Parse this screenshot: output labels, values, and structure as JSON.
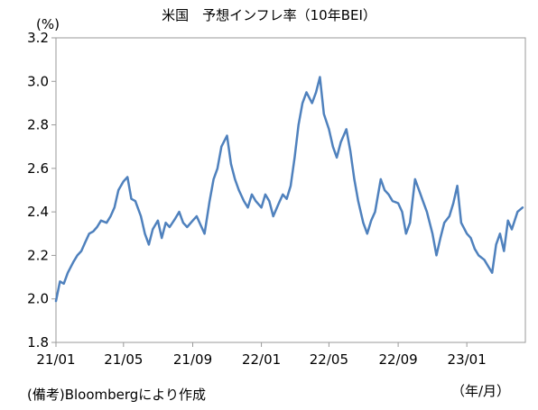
{
  "chart_data": {
    "type": "line",
    "title": "米国　予想インフレ率（10年BEI）",
    "ylabel": "(%)",
    "xlabel": "（年/月）",
    "source": "(備考)Bloombergにより作成",
    "ylim": [
      1.8,
      3.2
    ],
    "yticks": [
      "1.8",
      "2.0",
      "2.2",
      "2.4",
      "2.6",
      "2.8",
      "3.0",
      "3.2"
    ],
    "xlim": [
      "2021-01-01",
      "2023-04-15"
    ],
    "xticks": [
      {
        "label": "21/01",
        "date": "2021-01-01"
      },
      {
        "label": "21/05",
        "date": "2021-05-01"
      },
      {
        "label": "21/09",
        "date": "2021-09-01"
      },
      {
        "label": "22/01",
        "date": "2022-01-01"
      },
      {
        "label": "22/05",
        "date": "2022-05-01"
      },
      {
        "label": "22/09",
        "date": "2022-09-01"
      },
      {
        "label": "23/01",
        "date": "2023-01-01"
      }
    ],
    "grid": false,
    "line_color": "#4f81bd",
    "series": [
      {
        "x": [
          "2021-01-01",
          "2021-01-08",
          "2021-01-15",
          "2021-01-22",
          "2021-02-01",
          "2021-02-08",
          "2021-02-15",
          "2021-02-22",
          "2021-03-01",
          "2021-03-08",
          "2021-03-15",
          "2021-03-22",
          "2021-04-01",
          "2021-04-08",
          "2021-04-15",
          "2021-04-22",
          "2021-05-01",
          "2021-05-08",
          "2021-05-15",
          "2021-05-22",
          "2021-06-01",
          "2021-06-08",
          "2021-06-15",
          "2021-06-22",
          "2021-07-01",
          "2021-07-08",
          "2021-07-15",
          "2021-07-22",
          "2021-08-01",
          "2021-08-08",
          "2021-08-15",
          "2021-08-22",
          "2021-09-01",
          "2021-09-08",
          "2021-09-15",
          "2021-09-22",
          "2021-10-01",
          "2021-10-08",
          "2021-10-15",
          "2021-10-22",
          "2021-11-01",
          "2021-11-08",
          "2021-11-15",
          "2021-11-22",
          "2021-12-01",
          "2021-12-08",
          "2021-12-15",
          "2021-12-22",
          "2022-01-01",
          "2022-01-08",
          "2022-01-15",
          "2022-01-22",
          "2022-02-01",
          "2022-02-08",
          "2022-02-15",
          "2022-02-22",
          "2022-03-01",
          "2022-03-08",
          "2022-03-15",
          "2022-03-22",
          "2022-04-01",
          "2022-04-08",
          "2022-04-15",
          "2022-04-22",
          "2022-05-01",
          "2022-05-08",
          "2022-05-15",
          "2022-05-22",
          "2022-06-01",
          "2022-06-08",
          "2022-06-15",
          "2022-06-22",
          "2022-07-01",
          "2022-07-08",
          "2022-07-15",
          "2022-07-22",
          "2022-08-01",
          "2022-08-08",
          "2022-08-15",
          "2022-08-22",
          "2022-09-01",
          "2022-09-08",
          "2022-09-15",
          "2022-09-22",
          "2022-10-01",
          "2022-10-08",
          "2022-10-15",
          "2022-10-22",
          "2022-11-01",
          "2022-11-08",
          "2022-11-15",
          "2022-11-22",
          "2022-12-01",
          "2022-12-08",
          "2022-12-15",
          "2022-12-22",
          "2023-01-01",
          "2023-01-08",
          "2023-01-15",
          "2023-01-22",
          "2023-02-01",
          "2023-02-08",
          "2023-02-15",
          "2023-02-22",
          "2023-03-01",
          "2023-03-08",
          "2023-03-15",
          "2023-03-22",
          "2023-04-01",
          "2023-04-10"
        ],
        "values": [
          1.99,
          2.08,
          2.07,
          2.12,
          2.17,
          2.2,
          2.22,
          2.26,
          2.3,
          2.31,
          2.33,
          2.36,
          2.35,
          2.38,
          2.42,
          2.5,
          2.54,
          2.56,
          2.46,
          2.45,
          2.38,
          2.3,
          2.25,
          2.32,
          2.36,
          2.28,
          2.35,
          2.33,
          2.37,
          2.4,
          2.35,
          2.33,
          2.36,
          2.38,
          2.34,
          2.3,
          2.45,
          2.55,
          2.6,
          2.7,
          2.75,
          2.62,
          2.55,
          2.5,
          2.45,
          2.42,
          2.48,
          2.45,
          2.42,
          2.48,
          2.45,
          2.38,
          2.44,
          2.48,
          2.46,
          2.52,
          2.65,
          2.8,
          2.9,
          2.95,
          2.9,
          2.95,
          3.02,
          2.85,
          2.78,
          2.7,
          2.65,
          2.72,
          2.78,
          2.68,
          2.55,
          2.45,
          2.35,
          2.3,
          2.36,
          2.4,
          2.55,
          2.5,
          2.48,
          2.45,
          2.44,
          2.4,
          2.3,
          2.35,
          2.55,
          2.5,
          2.45,
          2.4,
          2.3,
          2.2,
          2.28,
          2.35,
          2.38,
          2.44,
          2.52,
          2.35,
          2.3,
          2.28,
          2.23,
          2.2,
          2.18,
          2.15,
          2.12,
          2.25,
          2.3,
          2.22,
          2.36,
          2.32,
          2.4,
          2.42
        ]
      }
    ]
  }
}
